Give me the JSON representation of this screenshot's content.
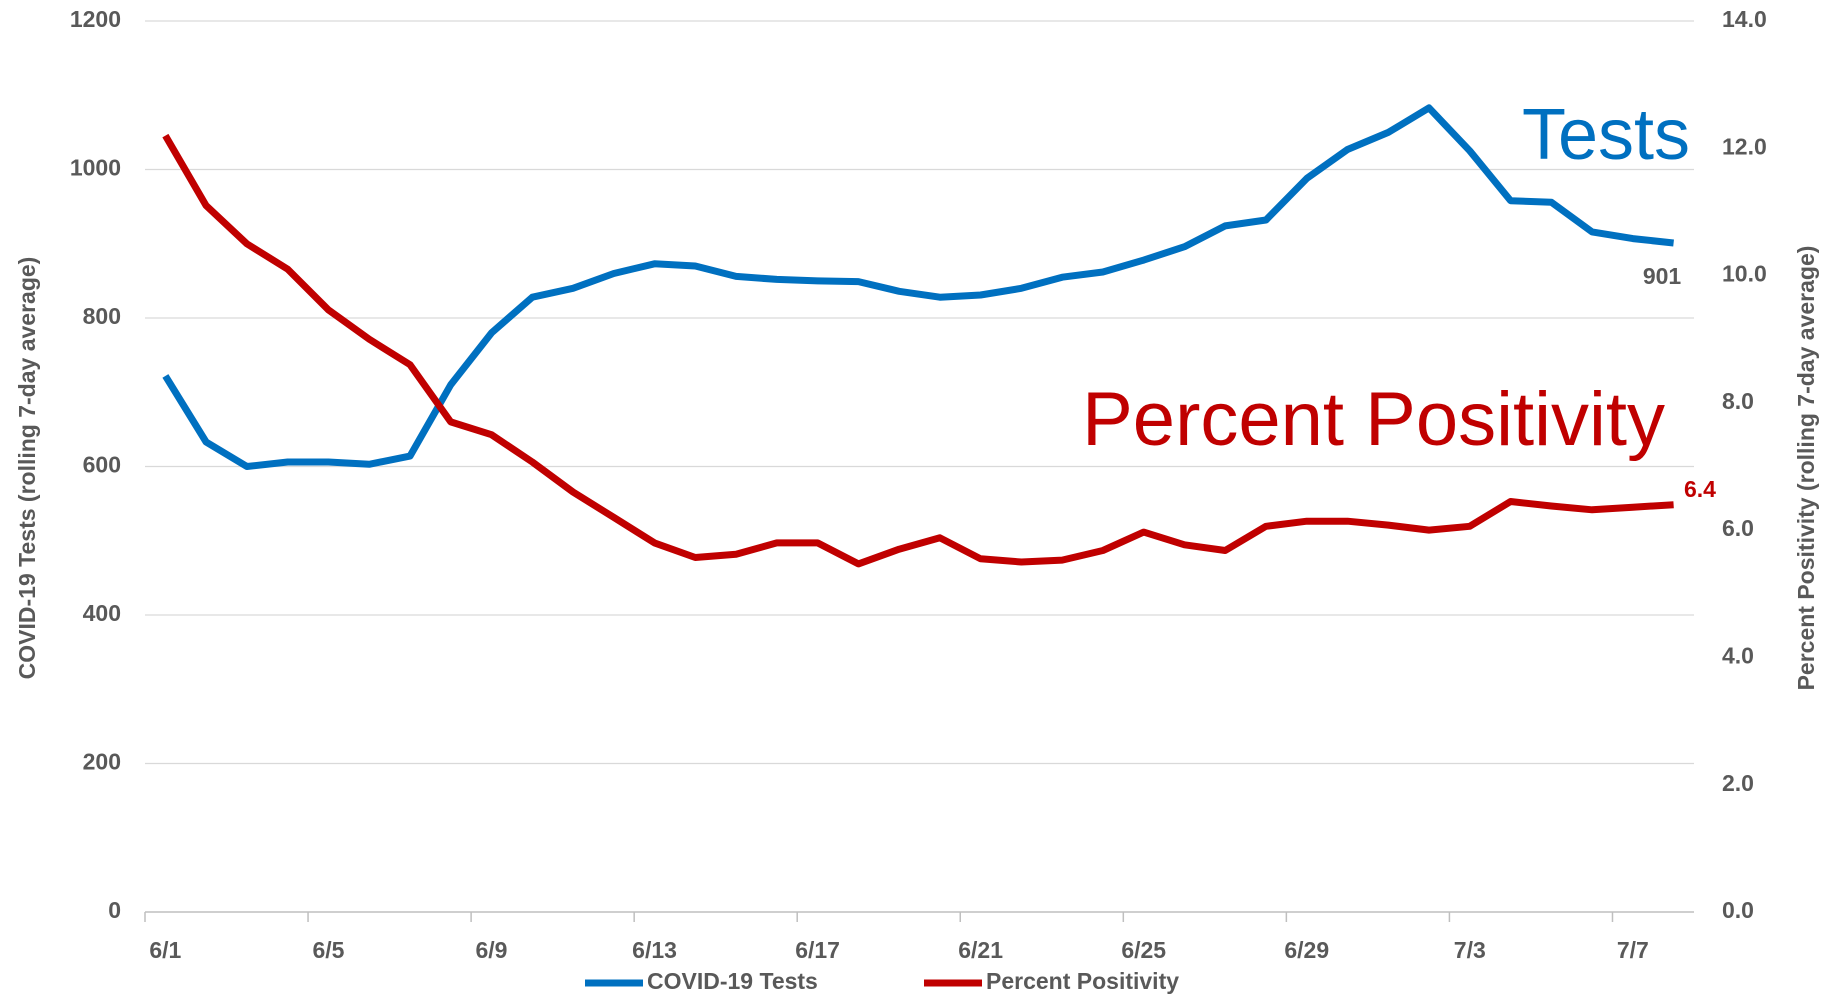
{
  "chart_data": {
    "type": "line",
    "categories": [
      "6/1",
      null,
      null,
      null,
      "6/5",
      null,
      null,
      null,
      "6/9",
      null,
      null,
      null,
      "6/13",
      null,
      null,
      null,
      "6/17",
      null,
      null,
      null,
      "6/21",
      null,
      null,
      null,
      "6/25",
      null,
      null,
      null,
      "6/29",
      null,
      null,
      null,
      "7/3",
      null,
      null,
      null,
      "7/7",
      null
    ],
    "series": [
      {
        "name": "COVID-19 Tests",
        "color": "#0070c0",
        "axis": "y",
        "values": [
          722,
          633,
          600,
          606,
          606,
          603,
          614,
          710,
          780,
          828,
          840,
          860,
          873,
          870,
          856,
          852,
          850,
          849,
          836,
          828,
          831,
          840,
          855,
          862,
          878,
          896,
          924,
          932,
          988,
          1027,
          1050,
          1083,
          1025,
          958,
          956,
          916,
          907,
          901
        ]
      },
      {
        "name": "Percent Positivity",
        "color": "#c00000",
        "axis": "y2",
        "values": [
          12.2,
          11.1,
          10.5,
          10.1,
          9.46,
          9.0,
          8.6,
          7.7,
          7.5,
          7.07,
          6.6,
          6.2,
          5.8,
          5.57,
          5.62,
          5.8,
          5.8,
          5.47,
          5.7,
          5.88,
          5.55,
          5.5,
          5.53,
          5.68,
          5.97,
          5.77,
          5.68,
          6.06,
          6.14,
          6.14,
          6.08,
          6.0,
          6.06,
          6.45,
          6.38,
          6.32,
          6.36,
          6.4
        ]
      }
    ],
    "ylabel": "COVID-19 Tests (rolling 7-day average)",
    "y2label": "Percent Positivity (rolling 7-day average)",
    "ylim": [
      0,
      1200
    ],
    "yticks": [
      0,
      200,
      400,
      600,
      800,
      1000,
      1200
    ],
    "y2lim": [
      0,
      14
    ],
    "y2ticks": [
      {
        "value": 0,
        "label": "0.0"
      },
      {
        "value": 2,
        "label": "2.0"
      },
      {
        "value": 4,
        "label": "4.0"
      },
      {
        "value": 6,
        "label": "6.0"
      },
      {
        "value": 8,
        "label": "8.0"
      },
      {
        "value": 10,
        "label": "10.0"
      },
      {
        "value": 12,
        "label": "12.0"
      },
      {
        "value": 14,
        "label": "14.0"
      }
    ],
    "annotations": [
      "Tests",
      "Percent Positivity"
    ],
    "grid": true,
    "legend": "bottom"
  }
}
